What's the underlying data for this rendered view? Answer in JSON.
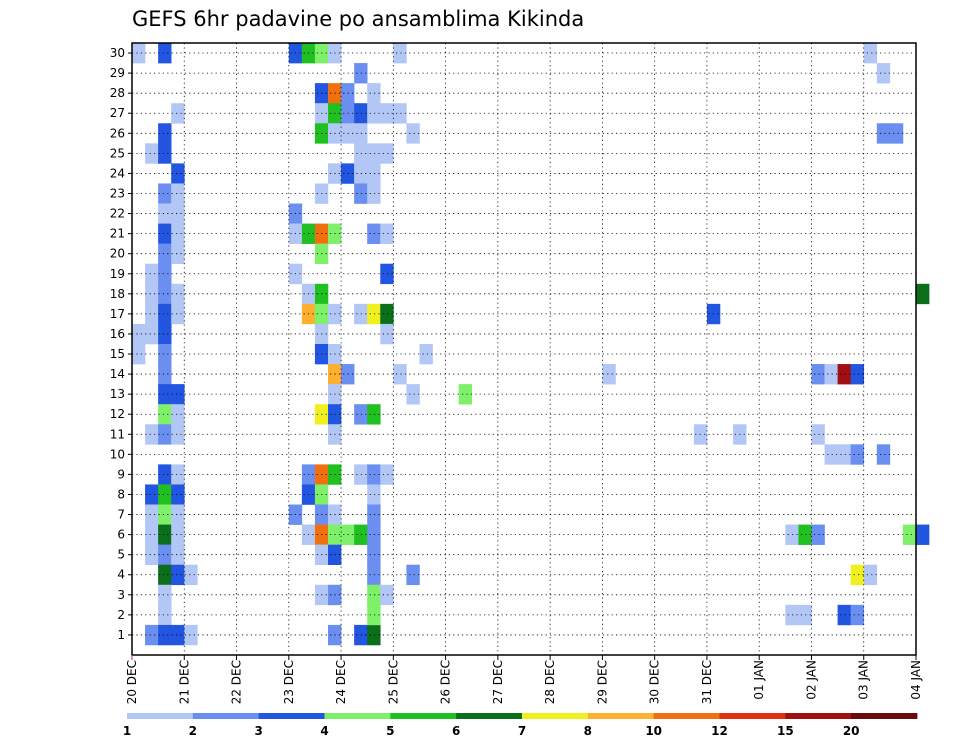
{
  "chart_data": {
    "type": "heatmap",
    "title": "GEFS 6hr padavine po ansamblima Kikinda",
    "xlabel": "",
    "ylabel": "",
    "x_tick_labels": [
      "20 DEC",
      "21 DEC",
      "22 DEC",
      "23 DEC",
      "24 DEC",
      "25 DEC",
      "26 DEC",
      "27 DEC",
      "28 DEC",
      "29 DEC",
      "30 DEC",
      "31 DEC",
      "01 JAN",
      "02 JAN",
      "03 JAN",
      "04 JAN"
    ],
    "y_tick_labels": [
      "1",
      "2",
      "3",
      "4",
      "5",
      "6",
      "7",
      "8",
      "9",
      "10",
      "11",
      "12",
      "13",
      "14",
      "15",
      "16",
      "17",
      "18",
      "19",
      "20",
      "21",
      "22",
      "23",
      "24",
      "25",
      "26",
      "27",
      "28",
      "29",
      "30"
    ],
    "grid": true,
    "legend_position": "bottom",
    "color_scale": {
      "levels": [
        "1",
        "2",
        "3",
        "4",
        "5",
        "6",
        "7",
        "8",
        "10",
        "12",
        "15",
        "20"
      ],
      "colors": [
        "#b3c7f7",
        "#6a8ff0",
        "#2356e0",
        "#7ef06a",
        "#20c020",
        "#0a6e1a",
        "#f0f020",
        "#ffb030",
        "#f07010",
        "#e03010",
        "#a01010",
        "#6a0a0a"
      ]
    },
    "cells": [
      [
        0,
        30,
        1
      ],
      [
        2,
        30,
        3
      ],
      [
        12,
        30,
        3
      ],
      [
        13,
        30,
        5
      ],
      [
        14,
        30,
        4
      ],
      [
        15,
        30,
        1
      ],
      [
        20,
        30,
        1
      ],
      [
        56,
        30,
        1
      ],
      [
        17,
        29,
        2
      ],
      [
        57,
        29,
        1
      ],
      [
        14,
        28,
        3
      ],
      [
        15,
        28,
        9
      ],
      [
        16,
        28,
        2
      ],
      [
        18,
        28,
        1
      ],
      [
        3,
        27,
        1
      ],
      [
        14,
        27,
        1
      ],
      [
        15,
        27,
        5
      ],
      [
        16,
        27,
        2
      ],
      [
        17,
        27,
        3
      ],
      [
        18,
        27,
        1
      ],
      [
        19,
        27,
        1
      ],
      [
        20,
        27,
        1
      ],
      [
        2,
        26,
        3
      ],
      [
        14,
        26,
        5
      ],
      [
        15,
        26,
        1
      ],
      [
        16,
        26,
        1
      ],
      [
        17,
        26,
        1
      ],
      [
        21,
        26,
        1
      ],
      [
        57,
        26,
        2
      ],
      [
        58,
        26,
        2
      ],
      [
        1,
        25,
        1
      ],
      [
        2,
        25,
        3
      ],
      [
        17,
        25,
        1
      ],
      [
        18,
        25,
        1
      ],
      [
        19,
        25,
        1
      ],
      [
        3,
        24,
        3
      ],
      [
        15,
        24,
        1
      ],
      [
        16,
        24,
        3
      ],
      [
        17,
        24,
        1
      ],
      [
        18,
        24,
        1
      ],
      [
        2,
        23,
        2
      ],
      [
        3,
        23,
        1
      ],
      [
        14,
        23,
        1
      ],
      [
        17,
        23,
        2
      ],
      [
        18,
        23,
        1
      ],
      [
        2,
        22,
        1
      ],
      [
        3,
        22,
        1
      ],
      [
        12,
        22,
        2
      ],
      [
        2,
        21,
        3
      ],
      [
        3,
        21,
        1
      ],
      [
        12,
        21,
        1
      ],
      [
        13,
        21,
        5
      ],
      [
        14,
        21,
        9
      ],
      [
        15,
        21,
        4
      ],
      [
        18,
        21,
        2
      ],
      [
        19,
        21,
        1
      ],
      [
        2,
        20,
        2
      ],
      [
        3,
        20,
        1
      ],
      [
        14,
        20,
        4
      ],
      [
        1,
        19,
        1
      ],
      [
        2,
        19,
        2
      ],
      [
        12,
        19,
        1
      ],
      [
        19,
        19,
        3
      ],
      [
        1,
        18,
        1
      ],
      [
        2,
        18,
        2
      ],
      [
        3,
        18,
        1
      ],
      [
        13,
        18,
        1
      ],
      [
        14,
        18,
        5
      ],
      [
        60,
        18,
        6
      ],
      [
        1,
        17,
        1
      ],
      [
        2,
        17,
        3
      ],
      [
        3,
        17,
        1
      ],
      [
        13,
        17,
        8
      ],
      [
        14,
        17,
        4
      ],
      [
        15,
        17,
        1
      ],
      [
        17,
        17,
        1
      ],
      [
        18,
        17,
        7
      ],
      [
        19,
        17,
        6
      ],
      [
        44,
        17,
        3
      ],
      [
        0,
        16,
        1
      ],
      [
        1,
        16,
        1
      ],
      [
        2,
        16,
        3
      ],
      [
        14,
        16,
        1
      ],
      [
        19,
        16,
        1
      ],
      [
        0,
        15,
        1
      ],
      [
        2,
        15,
        2
      ],
      [
        14,
        15,
        3
      ],
      [
        15,
        15,
        1
      ],
      [
        22,
        15,
        1
      ],
      [
        2,
        14,
        2
      ],
      [
        15,
        14,
        8
      ],
      [
        16,
        14,
        2
      ],
      [
        20,
        14,
        1
      ],
      [
        36,
        14,
        1
      ],
      [
        52,
        14,
        2
      ],
      [
        53,
        14,
        1
      ],
      [
        54,
        14,
        11
      ],
      [
        55,
        14,
        3
      ],
      [
        2,
        13,
        3
      ],
      [
        3,
        13,
        3
      ],
      [
        15,
        13,
        1
      ],
      [
        21,
        13,
        1
      ],
      [
        25,
        13,
        4
      ],
      [
        2,
        12,
        4
      ],
      [
        3,
        12,
        1
      ],
      [
        14,
        12,
        7
      ],
      [
        15,
        12,
        3
      ],
      [
        17,
        12,
        2
      ],
      [
        18,
        12,
        5
      ],
      [
        1,
        11,
        1
      ],
      [
        2,
        11,
        2
      ],
      [
        3,
        11,
        1
      ],
      [
        15,
        11,
        1
      ],
      [
        43,
        11,
        1
      ],
      [
        46,
        11,
        1
      ],
      [
        52,
        11,
        1
      ],
      [
        53,
        10,
        1
      ],
      [
        54,
        10,
        1
      ],
      [
        55,
        10,
        2
      ],
      [
        57,
        10,
        2
      ],
      [
        2,
        9,
        3
      ],
      [
        3,
        9,
        1
      ],
      [
        13,
        9,
        2
      ],
      [
        14,
        9,
        9
      ],
      [
        15,
        9,
        5
      ],
      [
        17,
        9,
        1
      ],
      [
        18,
        9,
        2
      ],
      [
        19,
        9,
        1
      ],
      [
        1,
        8,
        3
      ],
      [
        2,
        8,
        5
      ],
      [
        3,
        8,
        3
      ],
      [
        13,
        8,
        3
      ],
      [
        14,
        8,
        4
      ],
      [
        18,
        8,
        1
      ],
      [
        1,
        7,
        1
      ],
      [
        2,
        7,
        4
      ],
      [
        3,
        7,
        1
      ],
      [
        12,
        7,
        2
      ],
      [
        14,
        7,
        2
      ],
      [
        15,
        7,
        1
      ],
      [
        18,
        7,
        2
      ],
      [
        1,
        6,
        1
      ],
      [
        2,
        6,
        6
      ],
      [
        3,
        6,
        1
      ],
      [
        13,
        6,
        1
      ],
      [
        14,
        6,
        9
      ],
      [
        15,
        6,
        4
      ],
      [
        16,
        6,
        4
      ],
      [
        17,
        6,
        5
      ],
      [
        18,
        6,
        2
      ],
      [
        50,
        6,
        1
      ],
      [
        51,
        6,
        5
      ],
      [
        52,
        6,
        2
      ],
      [
        59,
        6,
        4
      ],
      [
        60,
        6,
        3
      ],
      [
        1,
        5,
        1
      ],
      [
        2,
        5,
        2
      ],
      [
        3,
        5,
        1
      ],
      [
        14,
        5,
        1
      ],
      [
        15,
        5,
        3
      ],
      [
        18,
        5,
        2
      ],
      [
        2,
        4,
        6
      ],
      [
        3,
        4,
        3
      ],
      [
        4,
        4,
        1
      ],
      [
        18,
        4,
        2
      ],
      [
        21,
        4,
        2
      ],
      [
        55,
        4,
        7
      ],
      [
        56,
        4,
        1
      ],
      [
        2,
        3,
        1
      ],
      [
        14,
        3,
        1
      ],
      [
        15,
        3,
        2
      ],
      [
        18,
        3,
        4
      ],
      [
        19,
        3,
        1
      ],
      [
        2,
        2,
        1
      ],
      [
        50,
        2,
        1
      ],
      [
        51,
        2,
        1
      ],
      [
        54,
        2,
        3
      ],
      [
        55,
        2,
        2
      ],
      [
        1,
        1,
        2
      ],
      [
        2,
        1,
        3
      ],
      [
        3,
        1,
        3
      ],
      [
        4,
        1,
        1
      ],
      [
        15,
        1,
        2
      ],
      [
        17,
        1,
        3
      ],
      [
        18,
        1,
        6
      ],
      [
        18,
        2,
        4
      ]
    ]
  }
}
